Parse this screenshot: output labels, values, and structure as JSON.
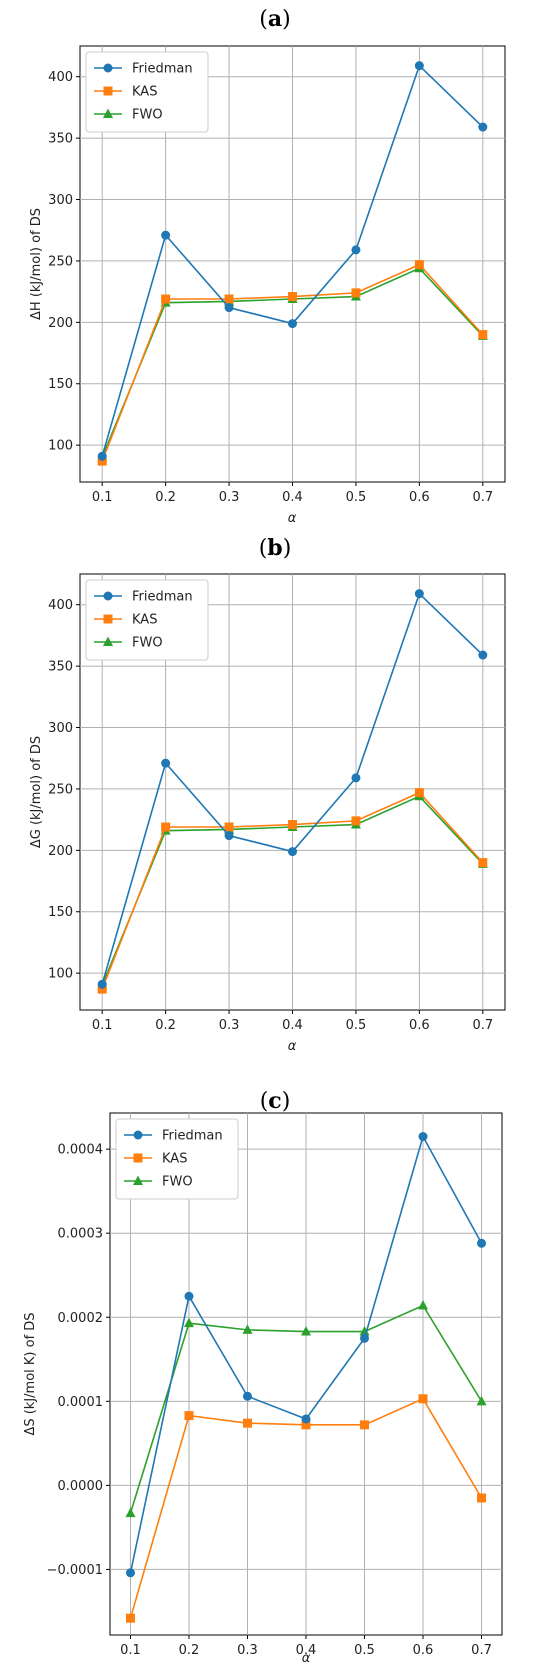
{
  "colors": {
    "Friedman": "#1f77b4",
    "KAS": "#ff7f0e",
    "FWO": "#2ca02c",
    "grid": "#b0b0b0"
  },
  "chart_data": [
    {
      "panel": "a",
      "type": "line",
      "xlabel": "α",
      "ylabel": "ΔH (kJ/mol) of DS",
      "x": [
        0.1,
        0.2,
        0.3,
        0.4,
        0.5,
        0.6,
        0.7
      ],
      "xticks": [
        "0.1",
        "0.2",
        "0.3",
        "0.4",
        "0.5",
        "0.6",
        "0.7"
      ],
      "yticks": [
        "100",
        "150",
        "200",
        "250",
        "300",
        "350",
        "400"
      ],
      "xlim": [
        0.065,
        0.735
      ],
      "ylim": [
        70,
        425
      ],
      "grid": true,
      "legend": "top-left",
      "series": [
        {
          "name": "Friedman",
          "marker": "circle",
          "values": [
            91,
            271,
            212,
            199,
            259,
            409,
            359
          ]
        },
        {
          "name": "KAS",
          "marker": "square",
          "values": [
            87,
            219,
            219,
            221,
            224,
            247,
            190
          ]
        },
        {
          "name": "FWO",
          "marker": "triangle",
          "values": [
            90,
            216,
            217,
            219,
            221,
            244,
            189
          ]
        }
      ]
    },
    {
      "panel": "b",
      "type": "line",
      "xlabel": "α",
      "ylabel": "ΔG (kJ/mol) of DS",
      "x": [
        0.1,
        0.2,
        0.3,
        0.4,
        0.5,
        0.6,
        0.7
      ],
      "xticks": [
        "0.1",
        "0.2",
        "0.3",
        "0.4",
        "0.5",
        "0.6",
        "0.7"
      ],
      "yticks": [
        "100",
        "150",
        "200",
        "250",
        "300",
        "350",
        "400"
      ],
      "xlim": [
        0.065,
        0.735
      ],
      "ylim": [
        70,
        425
      ],
      "grid": true,
      "legend": "top-left",
      "series": [
        {
          "name": "Friedman",
          "marker": "circle",
          "values": [
            91,
            271,
            212,
            199,
            259,
            409,
            359
          ]
        },
        {
          "name": "KAS",
          "marker": "square",
          "values": [
            87,
            219,
            219,
            221,
            224,
            247,
            190
          ]
        },
        {
          "name": "FWO",
          "marker": "triangle",
          "values": [
            90,
            216,
            217,
            219,
            221,
            244,
            189
          ]
        }
      ]
    },
    {
      "panel": "c",
      "type": "line",
      "xlabel": "α",
      "ylabel": "ΔS (kJ/mol  K) of DS",
      "x": [
        0.1,
        0.2,
        0.3,
        0.4,
        0.5,
        0.6,
        0.7
      ],
      "xticks": [
        "0.1",
        "0.2",
        "0.3",
        "0.4",
        "0.5",
        "0.6",
        "0.7"
      ],
      "yticks": [
        "−0.0001",
        "0.0000",
        "0.0001",
        "0.0002",
        "0.0003",
        "0.0004"
      ],
      "xlim": [
        0.065,
        0.735
      ],
      "ylim": [
        -0.000178,
        0.000443
      ],
      "grid": true,
      "legend": "top-left",
      "series": [
        {
          "name": "Friedman",
          "marker": "circle",
          "values": [
            -0.000104,
            0.000225,
            0.000106,
            7.9e-05,
            0.000175,
            0.000415,
            0.000288
          ]
        },
        {
          "name": "KAS",
          "marker": "square",
          "values": [
            -0.000158,
            8.3e-05,
            7.4e-05,
            7.2e-05,
            7.2e-05,
            0.000103,
            -1.5e-05
          ]
        },
        {
          "name": "FWO",
          "marker": "triangle",
          "values": [
            -3.3e-05,
            0.000193,
            0.000185,
            0.000183,
            0.000183,
            0.000214,
            0.0001
          ]
        }
      ]
    }
  ]
}
